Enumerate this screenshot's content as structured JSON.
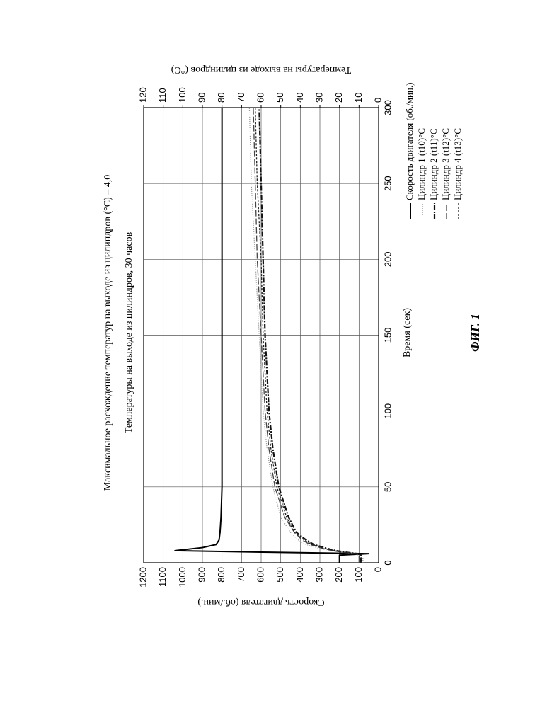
{
  "chart_data": {
    "type": "line",
    "title": "Максимальное расхождение температур на выходе из цилиндров (°C) – 4,0",
    "subtitle": "Температуры на выходе из цилиндров, 30 часов",
    "x_label": "Время (сек)",
    "y_label": "Скорость двигателя (об./мин.)",
    "y2_label": "Температуры на выходе из цилиндров (°C)",
    "figure_label": "ФИГ. 1",
    "x": [
      0,
      5,
      6,
      7,
      8,
      10,
      12,
      15,
      20,
      30,
      50,
      75,
      100,
      150,
      200,
      250,
      300
    ],
    "series": [
      {
        "name": "Скорость двигателя (об./мин.)",
        "color": "#000000",
        "dash": "none",
        "width": 2,
        "values": [
          200,
          200,
          50,
          600,
          1040,
          900,
          830,
          815,
          810,
          805,
          800,
          800,
          800,
          800,
          800,
          800,
          800
        ]
      },
      {
        "name": "Цилиндр 1 (t10)°C",
        "color": "#888888",
        "dash": "1,2",
        "width": 1.2,
        "axis": "y2",
        "values": [
          8,
          8,
          10,
          18,
          25,
          32,
          37,
          41,
          45,
          50,
          54,
          57,
          59,
          61,
          63,
          65,
          66
        ]
      },
      {
        "name": "Цилиндр 2 (t11)°C",
        "color": "#111111",
        "dash": "7,2,2,2",
        "width": 2.2,
        "axis": "y2",
        "values": [
          9,
          9,
          11,
          17,
          22,
          28,
          33,
          37,
          42,
          46,
          51,
          54,
          56,
          58,
          59,
          60,
          61
        ]
      },
      {
        "name": "Цилиндр 3 (t12)°C",
        "color": "#444444",
        "dash": "9,3",
        "width": 1.3,
        "axis": "y2",
        "values": [
          10,
          10,
          12,
          19,
          24,
          30,
          35,
          39,
          43,
          48,
          53,
          56,
          58,
          60,
          62,
          63,
          64
        ]
      },
      {
        "name": "Цилиндр 4 (t13)°C",
        "color": "#222222",
        "dash": "3,2",
        "width": 1.3,
        "axis": "y2",
        "values": [
          9,
          9,
          11,
          18,
          23,
          29,
          34,
          38,
          43,
          47,
          52,
          55,
          57,
          59,
          60,
          62,
          63
        ]
      }
    ],
    "xlim": [
      0,
      300
    ],
    "xticks": [
      0,
      50,
      100,
      150,
      200,
      250,
      300
    ],
    "ylim": [
      0,
      1200
    ],
    "yticks": [
      0,
      100,
      200,
      300,
      400,
      500,
      600,
      700,
      800,
      900,
      1000,
      1100,
      1200
    ],
    "y2lim": [
      0,
      120
    ],
    "y2ticks": [
      0,
      10,
      20,
      30,
      40,
      50,
      60,
      70,
      80,
      90,
      100,
      110,
      120
    ],
    "grid": true
  }
}
